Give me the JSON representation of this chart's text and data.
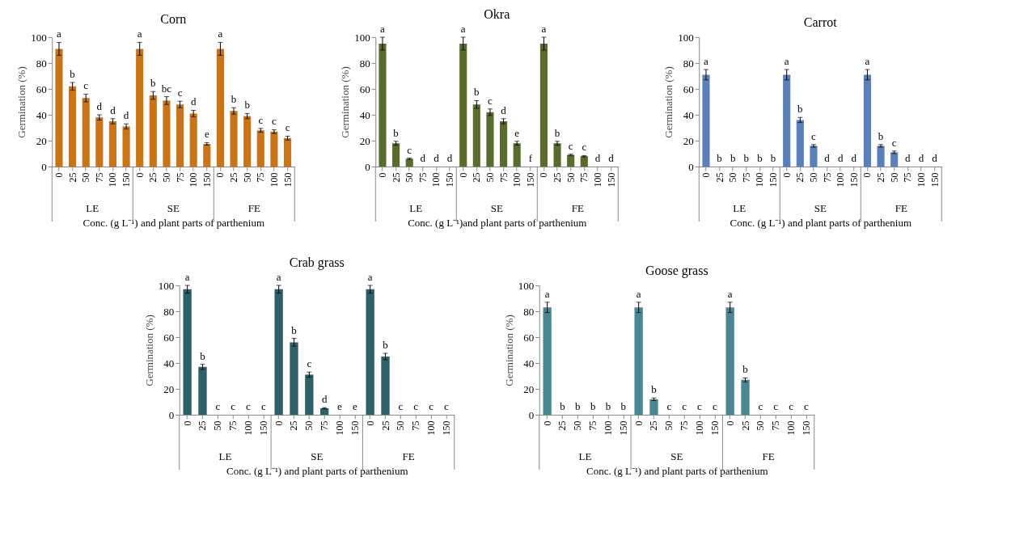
{
  "chart_data": [
    {
      "type": "bar",
      "title": "Corn",
      "xlabel": "Conc. (g L⁻¹) and plant parts of parthenium",
      "ylabel": "Germination  (%)",
      "categories": [
        "0",
        "25",
        "50",
        "75",
        "100",
        "150",
        "0",
        "25",
        "50",
        "75",
        "100",
        "150",
        "0",
        "25",
        "50",
        "75",
        "100",
        "150"
      ],
      "values": [
        91,
        62,
        53,
        38,
        35,
        31,
        91,
        55,
        51,
        48,
        41,
        17.5,
        91,
        43,
        39,
        28,
        27,
        22
      ],
      "errors": [
        5,
        3,
        3,
        2,
        2,
        2,
        5,
        3,
        3,
        2.5,
        2.5,
        1,
        5,
        2.5,
        2,
        1.5,
        1.5,
        1.5
      ],
      "value_labels": [
        "a",
        "b",
        "c",
        "d",
        "d",
        "d",
        "a",
        "b",
        "bc",
        "c",
        "d",
        "e",
        "a",
        "b",
        "b",
        "c",
        "c",
        "c"
      ],
      "color": "#c87417",
      "ylim": [
        0,
        100
      ],
      "yticks": [
        0,
        20,
        40,
        60,
        80,
        100
      ],
      "grid": false,
      "annotations": [
        "LE",
        "SE",
        "FE"
      ]
    },
    {
      "type": "bar",
      "title": "Okra",
      "xlabel": "Conc. (g L⁻¹)and plant parts of parthenium",
      "ylabel": "Germination  (%)",
      "categories": [
        "0",
        "25",
        "50",
        "75",
        "100",
        "150",
        "0",
        "25",
        "50",
        "75",
        "100",
        "150",
        "0",
        "25",
        "50",
        "75",
        "100",
        "150"
      ],
      "values": [
        95,
        18,
        6,
        0,
        0,
        0,
        95,
        48,
        42,
        35,
        18,
        0,
        95,
        18,
        9,
        8,
        0,
        0
      ],
      "errors": [
        5,
        1.5,
        0.5,
        null,
        null,
        null,
        5,
        3,
        2.5,
        2,
        1.5,
        null,
        5,
        1.5,
        0.5,
        0.5,
        null,
        null
      ],
      "value_labels": [
        "a",
        "b",
        "c",
        "d",
        "d",
        "d",
        "a",
        "b",
        "c",
        "d",
        "e",
        "f",
        "a",
        "b",
        "c",
        "c",
        "d",
        "d"
      ],
      "color": "#5a6b2e",
      "ylim": [
        0,
        100
      ],
      "yticks": [
        0,
        20,
        40,
        60,
        80,
        100
      ],
      "grid": false,
      "annotations": [
        "LE",
        "SE",
        "FE"
      ]
    },
    {
      "type": "bar",
      "title": "Carrot",
      "xlabel": "Conc. (g L⁻¹) and plant parts of parthenium",
      "ylabel": "Germination  (%)",
      "categories": [
        "0",
        "25",
        "50",
        "75",
        "100",
        "150",
        "0",
        "25",
        "50",
        "75",
        "100",
        "150",
        "0",
        "25",
        "50",
        "75",
        "100",
        "150"
      ],
      "values": [
        71,
        0,
        0,
        0,
        0,
        0,
        71,
        36,
        16,
        0,
        0,
        0,
        71,
        16,
        11,
        0,
        0,
        0
      ],
      "errors": [
        4,
        null,
        null,
        null,
        null,
        null,
        4,
        2,
        1,
        null,
        null,
        null,
        4,
        1,
        1,
        null,
        null,
        null
      ],
      "value_labels": [
        "a",
        "b",
        "b",
        "b",
        "b",
        "b",
        "a",
        "b",
        "c",
        "d",
        "d",
        "d",
        "a",
        "b",
        "c",
        "d",
        "d",
        "d"
      ],
      "color": "#5b7fb9",
      "ylim": [
        0,
        100
      ],
      "yticks": [
        0,
        20,
        40,
        60,
        80,
        100
      ],
      "grid": false,
      "annotations": [
        "LE",
        "SE",
        "FE"
      ]
    },
    {
      "type": "bar",
      "title": "Crab grass",
      "xlabel": "Conc. (g L⁻¹) and plant parts of parthenium",
      "ylabel": "Germination  (%)",
      "categories": [
        "0",
        "25",
        "50",
        "75",
        "100",
        "150",
        "0",
        "25",
        "50",
        "75",
        "100",
        "150",
        "0",
        "25",
        "50",
        "75",
        "100",
        "150"
      ],
      "values": [
        97,
        37,
        0,
        0,
        0,
        0,
        97,
        56,
        31,
        5,
        0,
        0,
        97,
        45,
        0,
        0,
        0,
        0
      ],
      "errors": [
        3,
        2,
        null,
        null,
        null,
        null,
        3,
        3,
        2,
        0.5,
        null,
        null,
        3,
        2.5,
        null,
        null,
        null,
        null
      ],
      "value_labels": [
        "a",
        "b",
        "c",
        "c",
        "c",
        "c",
        "a",
        "b",
        "c",
        "d",
        "e",
        "e",
        "a",
        "b",
        "c",
        "c",
        "c",
        "c"
      ],
      "color": "#2d6068",
      "ylim": [
        0,
        100
      ],
      "yticks": [
        0,
        20,
        40,
        60,
        80,
        100
      ],
      "grid": false,
      "annotations": [
        "LE",
        "SE",
        "FE"
      ]
    },
    {
      "type": "bar",
      "title": "Goose grass",
      "xlabel": "Conc. (g L⁻¹) and plant parts of parthenium",
      "ylabel": "Germination  (%)",
      "categories": [
        "0",
        "25",
        "50",
        "75",
        "100",
        "150",
        "0",
        "25",
        "50",
        "75",
        "100",
        "150",
        "0",
        "25",
        "50",
        "75",
        "100",
        "150"
      ],
      "values": [
        83,
        0,
        0,
        0,
        0,
        0,
        83,
        12,
        0,
        0,
        0,
        0,
        83,
        27,
        0,
        0,
        0,
        0
      ],
      "errors": [
        4,
        null,
        null,
        null,
        null,
        null,
        4,
        1,
        null,
        null,
        null,
        null,
        4,
        1.5,
        null,
        null,
        null,
        null
      ],
      "value_labels": [
        "a",
        "b",
        "b",
        "b",
        "b",
        "b",
        "a",
        "b",
        "c",
        "c",
        "c",
        "c",
        "a",
        "b",
        "c",
        "c",
        "c",
        "c"
      ],
      "color": "#4a8792",
      "ylim": [
        0,
        100
      ],
      "yticks": [
        0,
        20,
        40,
        60,
        80,
        100
      ],
      "grid": false,
      "annotations": [
        "LE",
        "SE",
        "FE"
      ]
    }
  ]
}
